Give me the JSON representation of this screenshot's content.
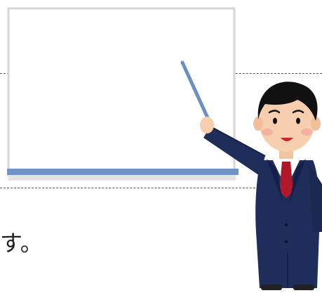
{
  "caption": {
    "text": "す。"
  },
  "illustration": {
    "whiteboard_icon": "whiteboard-icon",
    "presenter_icon": "businessman-presenter-icon",
    "pointer_icon": "pointer-stick-icon"
  },
  "colors": {
    "suit": "#1e2d5a",
    "tie": "#b0182a",
    "hair": "#111111",
    "skin": "#f7cfae",
    "board_frame": "#dcdcdc",
    "board_tray": "#6f93c4",
    "pointer": "#6a8fc4"
  }
}
